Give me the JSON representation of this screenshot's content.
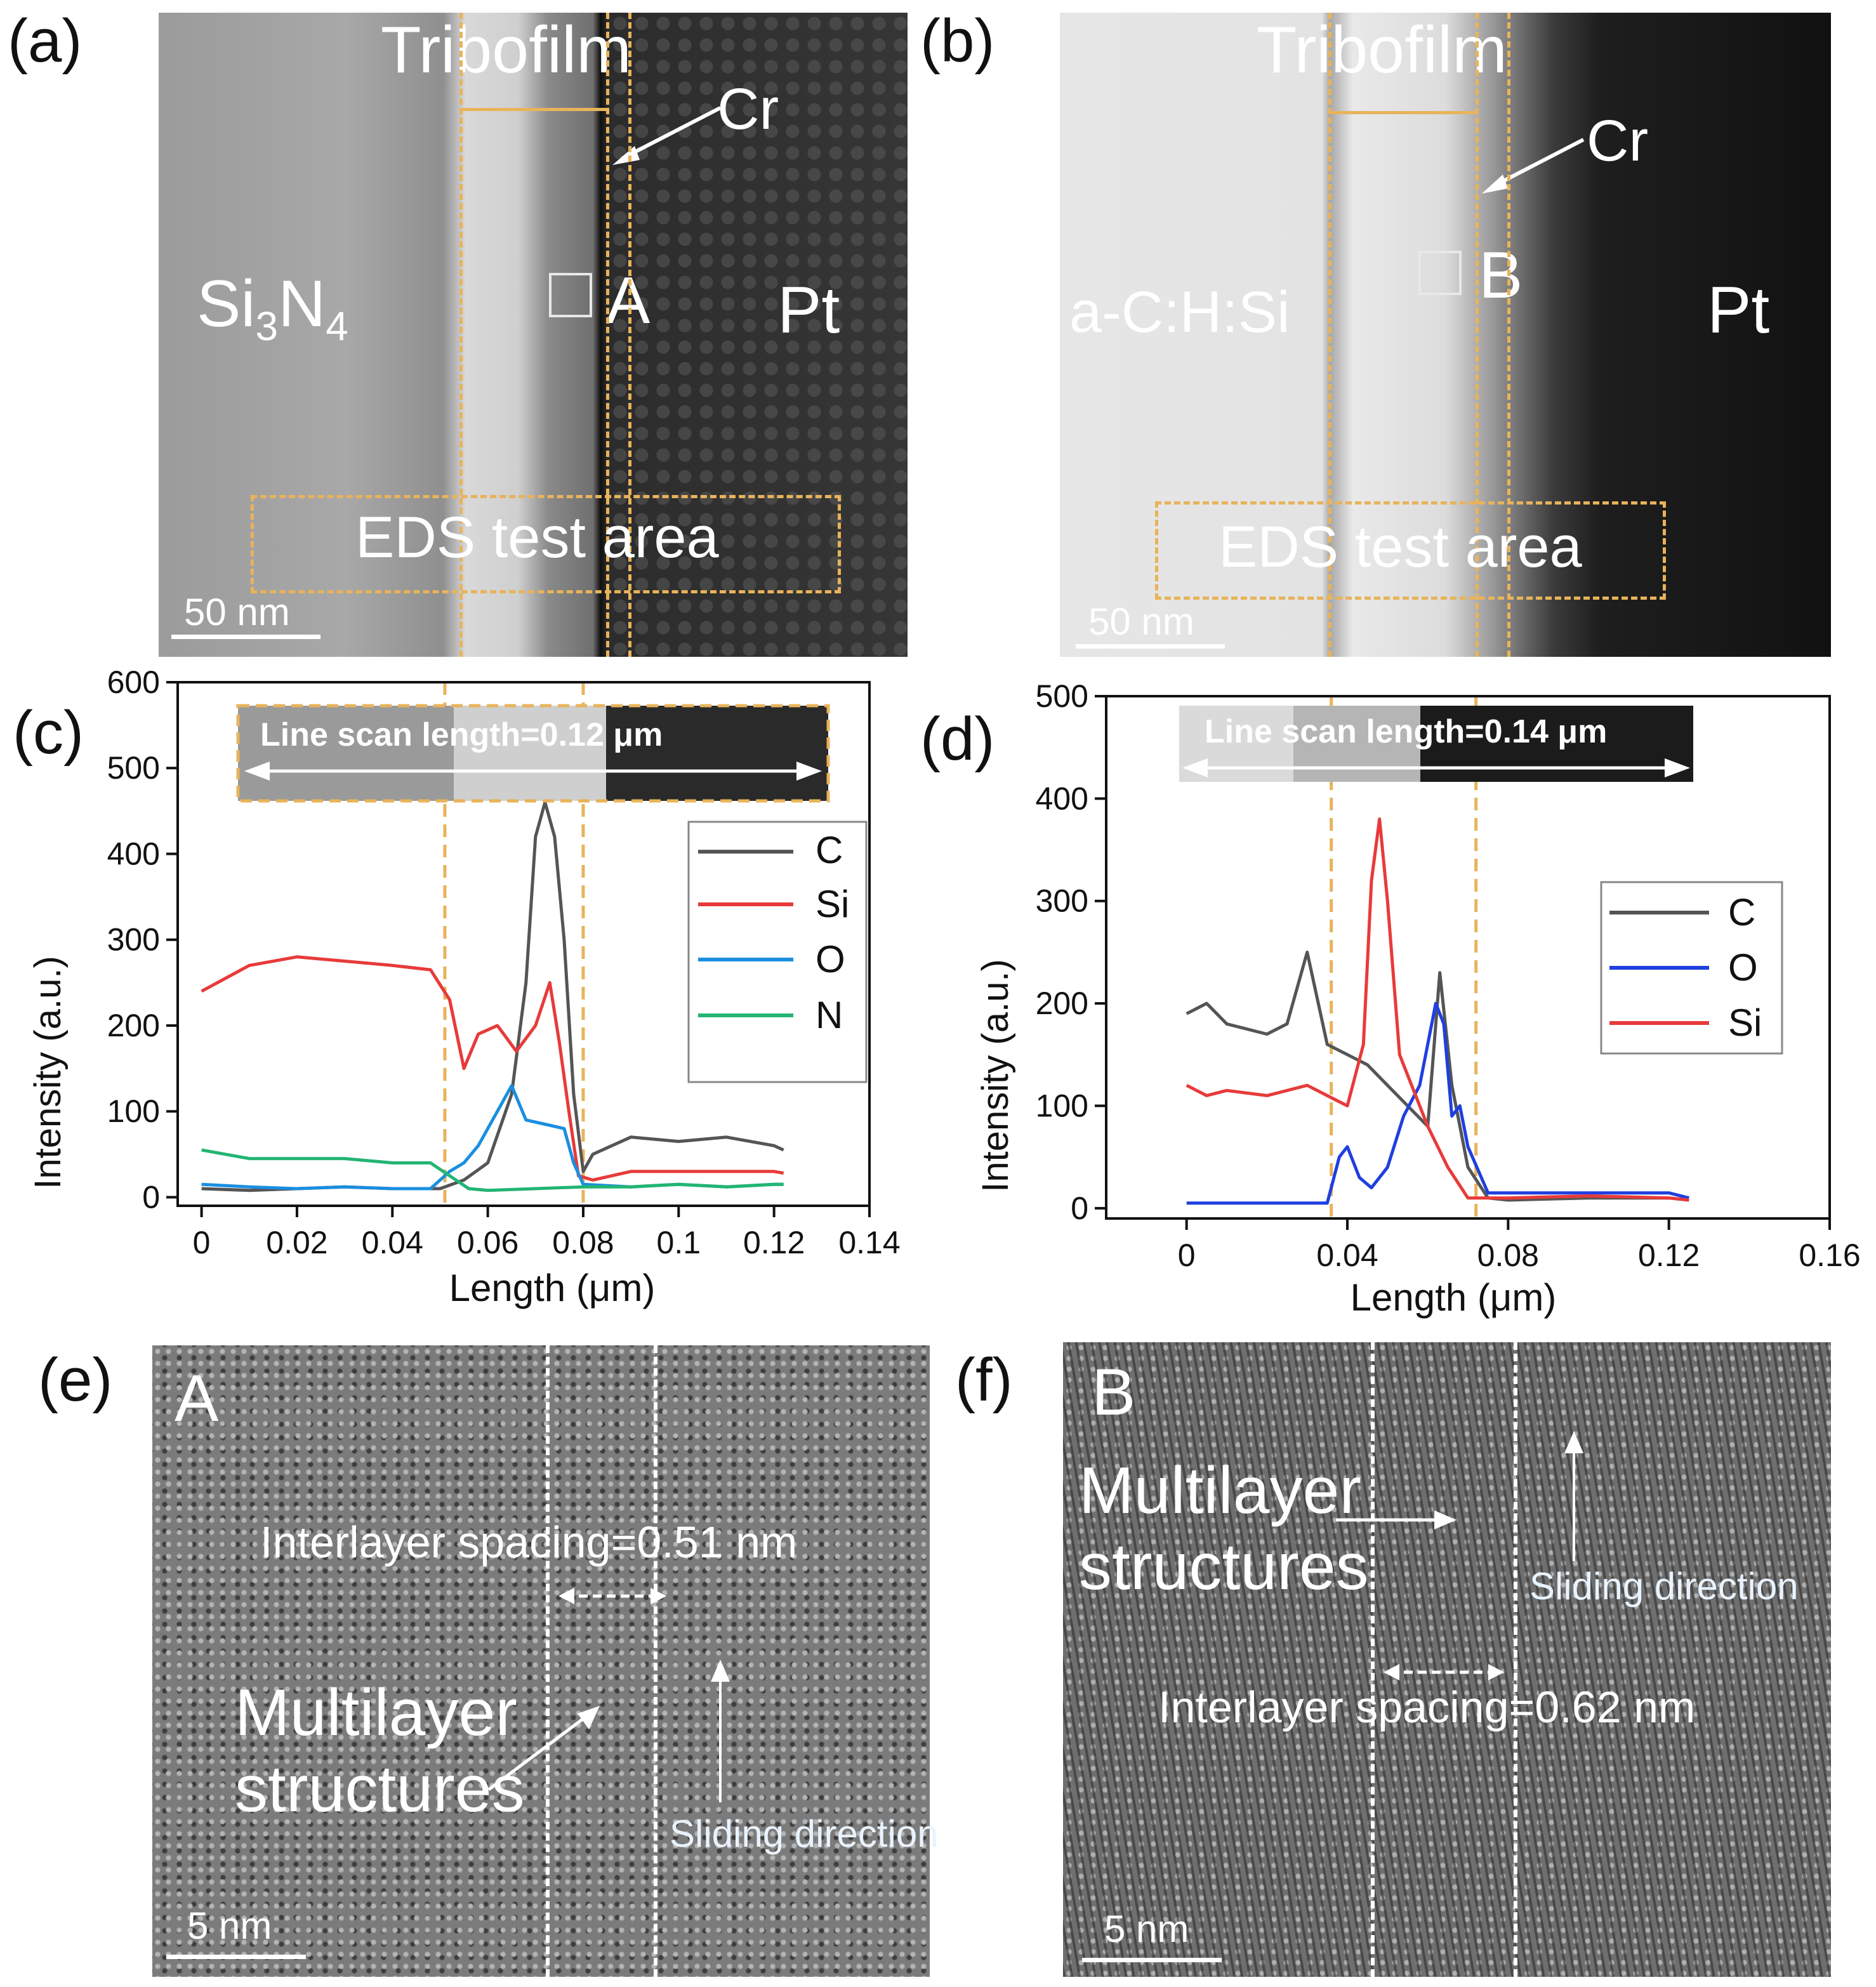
{
  "panel_labels": {
    "a": "(a)",
    "b": "(b)",
    "c": "(c)",
    "d": "(d)",
    "e": "(e)",
    "f": "(f)"
  },
  "panel_a": {
    "tribofilm": "Tribofilm",
    "cr": "Cr",
    "substrate_main": "Si",
    "substrate_sub1": "3",
    "substrate_mid": "N",
    "substrate_sub2": "4",
    "point": "A",
    "pt": "Pt",
    "eds": "EDS test area",
    "scale": "50 nm"
  },
  "panel_b": {
    "tribofilm": "Tribofilm",
    "cr": "Cr",
    "substrate": "a-C:H:Si",
    "point": "B",
    "pt": "Pt",
    "eds": "EDS test area",
    "scale": "50 nm"
  },
  "panel_e": {
    "point": "A",
    "spacing": "Interlayer spacing=0.51 nm",
    "multilayer_1": "Multilayer",
    "multilayer_2": "structures",
    "sliding": "Sliding direction",
    "scale": "5 nm"
  },
  "panel_f": {
    "point": "B",
    "spacing": "Interlayer spacing=0.62 nm",
    "multilayer_1": "Multilayer",
    "multilayer_2": "structures",
    "sliding": "Sliding direction",
    "scale": "5 nm"
  },
  "colors": {
    "C": "#555555",
    "Si": "#e83a3a",
    "O_c": "#1a8fe0",
    "O_d": "#1f3fe0",
    "N": "#22b573",
    "guide": "#e8b35a"
  },
  "chart_data": [
    {
      "type": "line",
      "panel": "c",
      "inset": "Line scan length=0.12 μm",
      "xlabel": "Length (μm)",
      "ylabel": "Intensity (a.u.)",
      "xlim": [
        -0.005,
        0.14
      ],
      "ylim": [
        -10,
        600
      ],
      "xticks": [
        0,
        0.02,
        0.04,
        0.06,
        0.08,
        0.1,
        0.12,
        0.14
      ],
      "xtick_labels": [
        "0",
        "0.02",
        "0.04",
        "0.06",
        "0.08",
        "0.1",
        "0.12",
        "0.14"
      ],
      "yticks": [
        0,
        100,
        200,
        300,
        400,
        500,
        600
      ],
      "ytick_labels": [
        "0",
        "100",
        "200",
        "300",
        "400",
        "500",
        "600"
      ],
      "guides": [
        0.051,
        0.08
      ],
      "legend": [
        "C",
        "Si",
        "O",
        "N"
      ],
      "series": [
        {
          "name": "C",
          "x": [
            0,
            0.01,
            0.02,
            0.03,
            0.04,
            0.05,
            0.055,
            0.06,
            0.065,
            0.068,
            0.07,
            0.072,
            0.074,
            0.076,
            0.078,
            0.08,
            0.082,
            0.09,
            0.1,
            0.11,
            0.12,
            0.122
          ],
          "y": [
            10,
            8,
            10,
            12,
            10,
            10,
            20,
            40,
            120,
            250,
            420,
            460,
            420,
            300,
            120,
            30,
            50,
            70,
            65,
            70,
            60,
            55
          ]
        },
        {
          "name": "Si",
          "x": [
            0,
            0.01,
            0.02,
            0.03,
            0.04,
            0.048,
            0.052,
            0.055,
            0.058,
            0.062,
            0.066,
            0.07,
            0.073,
            0.075,
            0.077,
            0.079,
            0.082,
            0.09,
            0.1,
            0.11,
            0.12,
            0.122
          ],
          "y": [
            240,
            270,
            280,
            275,
            270,
            265,
            230,
            150,
            190,
            200,
            170,
            200,
            250,
            180,
            100,
            25,
            20,
            30,
            30,
            30,
            30,
            28
          ]
        },
        {
          "name": "O",
          "x": [
            0,
            0.01,
            0.02,
            0.03,
            0.04,
            0.048,
            0.052,
            0.055,
            0.058,
            0.062,
            0.065,
            0.068,
            0.072,
            0.076,
            0.078,
            0.08,
            0.09,
            0.1,
            0.11,
            0.12,
            0.122
          ],
          "y": [
            15,
            12,
            10,
            12,
            10,
            10,
            30,
            40,
            60,
            100,
            130,
            90,
            85,
            80,
            40,
            15,
            12,
            15,
            12,
            15,
            15
          ]
        },
        {
          "name": "N",
          "x": [
            0,
            0.01,
            0.02,
            0.03,
            0.04,
            0.048,
            0.052,
            0.056,
            0.06,
            0.07,
            0.08,
            0.09,
            0.1,
            0.11,
            0.12,
            0.122
          ],
          "y": [
            55,
            45,
            45,
            45,
            40,
            40,
            25,
            10,
            8,
            10,
            12,
            12,
            15,
            12,
            15,
            15
          ]
        }
      ]
    },
    {
      "type": "line",
      "panel": "d",
      "inset": "Line scan length=0.14 μm",
      "xlabel": "Length (μm)",
      "ylabel": "Intensity (a.u.)",
      "xlim": [
        -0.02,
        0.16
      ],
      "ylim": [
        -10,
        500
      ],
      "xticks": [
        0,
        0.04,
        0.08,
        0.12,
        0.16
      ],
      "xtick_labels": [
        "0",
        "0.04",
        "0.08",
        "0.12",
        "0.16"
      ],
      "yticks": [
        0,
        100,
        200,
        300,
        400,
        500
      ],
      "ytick_labels": [
        "0",
        "100",
        "200",
        "300",
        "400",
        "500"
      ],
      "guides": [
        0.036,
        0.072
      ],
      "legend": [
        "C",
        "O",
        "Si"
      ],
      "series": [
        {
          "name": "C",
          "x": [
            0,
            0.005,
            0.01,
            0.02,
            0.025,
            0.03,
            0.035,
            0.04,
            0.045,
            0.05,
            0.055,
            0.06,
            0.063,
            0.066,
            0.07,
            0.075,
            0.08,
            0.1,
            0.12,
            0.125
          ],
          "y": [
            190,
            200,
            180,
            170,
            180,
            250,
            160,
            150,
            140,
            120,
            100,
            80,
            230,
            120,
            40,
            10,
            8,
            10,
            10,
            8
          ]
        },
        {
          "name": "O",
          "x": [
            0,
            0.01,
            0.02,
            0.03,
            0.035,
            0.038,
            0.04,
            0.043,
            0.046,
            0.05,
            0.054,
            0.058,
            0.062,
            0.064,
            0.066,
            0.068,
            0.07,
            0.075,
            0.08,
            0.1,
            0.12,
            0.125
          ],
          "y": [
            5,
            5,
            5,
            5,
            5,
            50,
            60,
            30,
            20,
            40,
            90,
            120,
            200,
            180,
            90,
            100,
            60,
            15,
            15,
            15,
            15,
            10
          ]
        },
        {
          "name": "Si",
          "x": [
            0,
            0.005,
            0.01,
            0.02,
            0.03,
            0.035,
            0.04,
            0.044,
            0.046,
            0.048,
            0.05,
            0.053,
            0.056,
            0.06,
            0.065,
            0.07,
            0.08,
            0.1,
            0.12,
            0.125
          ],
          "y": [
            120,
            110,
            115,
            110,
            120,
            110,
            100,
            160,
            320,
            380,
            300,
            150,
            120,
            80,
            40,
            10,
            10,
            12,
            10,
            8
          ]
        }
      ]
    }
  ]
}
